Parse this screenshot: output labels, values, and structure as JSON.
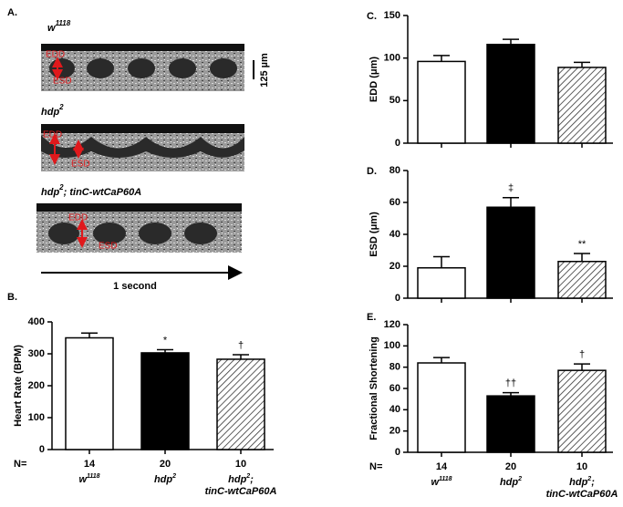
{
  "panel_a": {
    "label": "A.",
    "images": [
      {
        "title": {
          "text": "w",
          "sup": "1118"
        },
        "edd": "EDD",
        "esd": "ESD"
      },
      {
        "title": {
          "text": "hdp",
          "sup": "2"
        },
        "edd": "EDD",
        "esd": "ESD"
      },
      {
        "title": {
          "text": "hdp",
          "sup": "2",
          "after": "; tinC-wtCaP60A"
        },
        "edd": "EDD",
        "esd": "ESD"
      }
    ],
    "scale": "125 µm",
    "time": "1 second"
  },
  "chart_data": [
    {
      "type": "bar",
      "panel": "B.",
      "ylabel": "Heart Rate (BPM)",
      "categories": [
        {
          "text": "w",
          "sup": "1118"
        },
        {
          "text": "hdp",
          "sup": "2"
        },
        {
          "text": "hdp",
          "sup": "2",
          "after": ";",
          "line2": "tinC-wtCaP60A"
        }
      ],
      "n_label": "N=",
      "n": [
        14,
        20,
        10
      ],
      "values": [
        350,
        303,
        283
      ],
      "errors": [
        15,
        10,
        14
      ],
      "annotations": [
        null,
        "*",
        "†"
      ],
      "fills": [
        "white",
        "black",
        "hatch"
      ],
      "ylim": [
        0,
        400
      ],
      "yticks": [
        0,
        100,
        200,
        300,
        400
      ]
    },
    {
      "type": "bar",
      "panel": "C.",
      "ylabel": "EDD (μm)",
      "categories": [
        null,
        null,
        null
      ],
      "values": [
        96,
        116,
        89
      ],
      "errors": [
        7,
        6,
        6
      ],
      "annotations": [
        null,
        null,
        null
      ],
      "fills": [
        "white",
        "black",
        "hatch"
      ],
      "ylim": [
        0,
        150
      ],
      "yticks": [
        0,
        50,
        100,
        150
      ]
    },
    {
      "type": "bar",
      "panel": "D.",
      "ylabel": "ESD (μm)",
      "categories": [
        null,
        null,
        null
      ],
      "values": [
        19,
        57,
        23
      ],
      "errors": [
        7,
        6,
        5
      ],
      "annotations": [
        null,
        "‡",
        "**"
      ],
      "fills": [
        "white",
        "black",
        "hatch"
      ],
      "ylim": [
        0,
        80
      ],
      "yticks": [
        0,
        20,
        40,
        60,
        80
      ]
    },
    {
      "type": "bar",
      "panel": "E.",
      "ylabel": "Fractional Shortening",
      "categories": [
        {
          "text": "w",
          "sup": "1118"
        },
        {
          "text": "hdp",
          "sup": "2"
        },
        {
          "text": "hdp",
          "sup": "2",
          "after": ";",
          "line2": "tinC-wtCaP60A"
        }
      ],
      "n_label": "N=",
      "n": [
        14,
        20,
        10
      ],
      "values": [
        84,
        53,
        77
      ],
      "errors": [
        5,
        3,
        6
      ],
      "annotations": [
        null,
        "††",
        "†"
      ],
      "fills": [
        "white",
        "black",
        "hatch"
      ],
      "ylim": [
        0,
        120
      ],
      "yticks": [
        0,
        20,
        40,
        60,
        80,
        100,
        120
      ]
    }
  ]
}
